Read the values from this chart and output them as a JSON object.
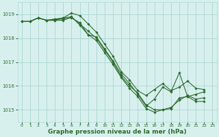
{
  "background_color": "#d7f0ee",
  "grid_color": "#b0d8d5",
  "line_color": "#2d6b2d",
  "marker_color": "#2d6b2d",
  "xlabel": "Graphe pression niveau de la mer (hPa)",
  "xlabel_fontsize": 6.5,
  "ylim": [
    1014.5,
    1019.5
  ],
  "xlim": [
    -0.5,
    23.5
  ],
  "yticks": [
    1015,
    1016,
    1017,
    1018,
    1019
  ],
  "xticks": [
    0,
    1,
    2,
    3,
    4,
    5,
    6,
    7,
    8,
    9,
    10,
    11,
    12,
    13,
    14,
    15,
    16,
    17,
    18,
    19,
    20,
    21,
    22,
    23
  ],
  "series": [
    [
      1018.7,
      1018.7,
      1018.85,
      1018.75,
      1018.75,
      1018.85,
      1018.9,
      1018.55,
      1018.15,
      1017.9,
      1017.4,
      1016.9,
      1016.35,
      1015.9,
      1015.55,
      1015.05,
      1014.9,
      1015.0,
      1015.05,
      1015.5,
      1015.55,
      1015.35,
      1015.35,
      null
    ],
    [
      1018.7,
      1018.7,
      1018.85,
      1018.75,
      1018.75,
      1018.75,
      1018.88,
      1018.6,
      1018.3,
      1018.0,
      1017.5,
      1017.0,
      1016.4,
      1016.0,
      1015.7,
      1015.2,
      1015.0,
      1015.0,
      1015.1,
      1015.4,
      1015.6,
      1015.45,
      1015.5,
      null
    ],
    [
      1018.7,
      1018.7,
      1018.85,
      1018.75,
      1018.8,
      1018.85,
      1019.05,
      1018.95,
      1018.6,
      1018.25,
      1017.75,
      1017.25,
      1016.6,
      1016.25,
      1015.8,
      1015.6,
      1015.85,
      1016.1,
      1015.8,
      1015.95,
      1016.2,
      1015.9,
      1015.85,
      null
    ],
    [
      1018.7,
      1018.7,
      1018.85,
      1018.75,
      1018.8,
      1018.8,
      1018.85,
      1018.65,
      1018.15,
      1018.05,
      1017.55,
      1017.05,
      1016.5,
      1016.1,
      1015.65,
      1015.15,
      1015.45,
      1015.95,
      1015.75,
      1016.55,
      1015.55,
      1015.65,
      1015.75,
      null
    ]
  ]
}
